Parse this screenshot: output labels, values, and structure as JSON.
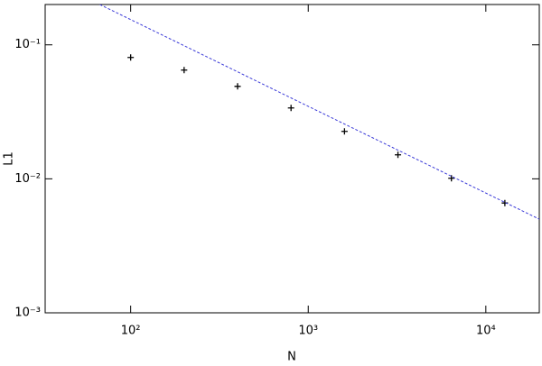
{
  "chart_data": {
    "type": "scatter",
    "xlabel": "N",
    "ylabel": "L1",
    "xscale": "log",
    "yscale": "log",
    "xlim": [
      33,
      20000
    ],
    "ylim": [
      0.001,
      0.2
    ],
    "xticks": [
      {
        "value": 100,
        "label": "10²"
      },
      {
        "value": 1000,
        "label": "10³"
      },
      {
        "value": 10000,
        "label": "10⁴"
      }
    ],
    "yticks": [
      {
        "value": 0.001,
        "label": "10⁻³"
      },
      {
        "value": 0.01,
        "label": "10⁻²"
      },
      {
        "value": 0.1,
        "label": "10⁻¹"
      }
    ],
    "series": [
      {
        "style": "points",
        "color": "#000000",
        "x": [
          100,
          200,
          400,
          800,
          1600,
          3200,
          6400,
          12800
        ],
        "values": [
          0.0805,
          0.0648,
          0.049,
          0.0338,
          0.0226,
          0.0151,
          0.0101,
          0.0066
        ]
      },
      {
        "style": "dashed",
        "color": "#3a3ad8",
        "x": [
          67,
          20000
        ],
        "values": [
          0.2,
          0.005
        ]
      }
    ]
  }
}
